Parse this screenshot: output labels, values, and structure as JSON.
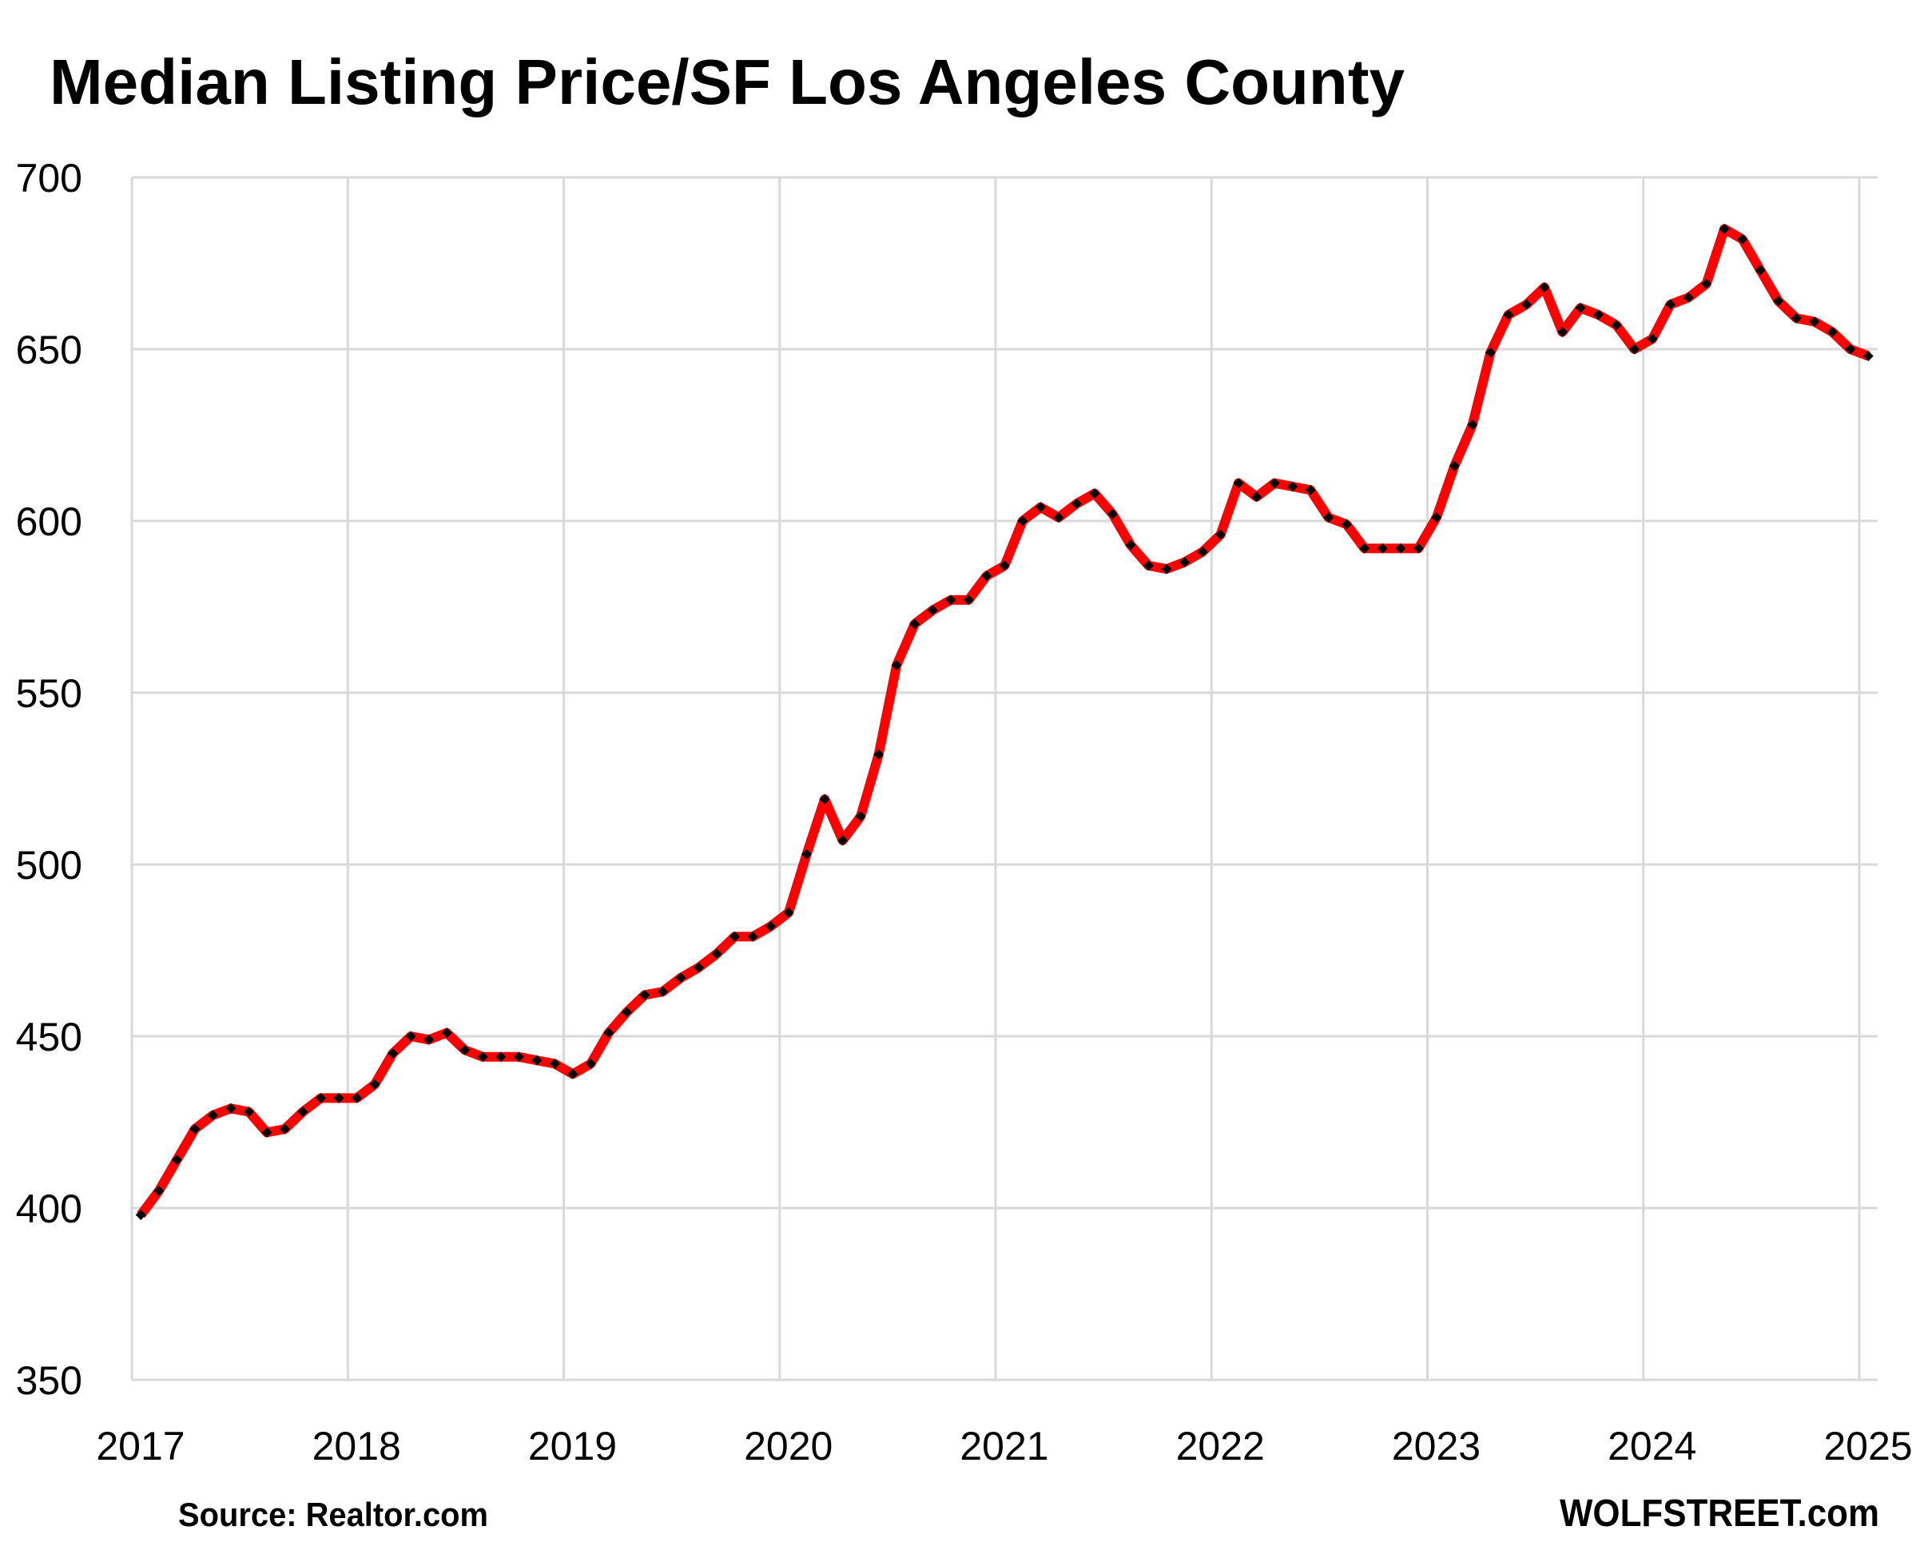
{
  "chart_data": {
    "type": "line",
    "title": "Median Listing Price/SF Los Angeles County",
    "xlabel": "",
    "ylabel": "",
    "ylim": [
      350,
      700
    ],
    "yticks": [
      "350",
      "400",
      "450",
      "500",
      "550",
      "600",
      "650",
      "700"
    ],
    "xticks": [
      "2017",
      "2018",
      "2019",
      "2020",
      "2021",
      "2022",
      "2023",
      "2024",
      "2025"
    ],
    "xrange": [
      "2017-01",
      "2025-01"
    ],
    "grid": true,
    "legend": "none",
    "series": [
      {
        "name": "Median Listing Price/SF Los Angeles County",
        "color": "#ff0000",
        "marker_color": "#000000",
        "start": "2017-01",
        "frequency": "monthly",
        "values": [
          398,
          405,
          414,
          423,
          427,
          429,
          428,
          422,
          423,
          428,
          432,
          432,
          432,
          436,
          445,
          450,
          449,
          451,
          446,
          444,
          444,
          444,
          443,
          442,
          439,
          442,
          451,
          457,
          462,
          463,
          467,
          470,
          474,
          479,
          479,
          482,
          486,
          503,
          519,
          507,
          514,
          532,
          558,
          570,
          574,
          577,
          577,
          584,
          587,
          600,
          604,
          601,
          605,
          608,
          602,
          593,
          587,
          586,
          588,
          591,
          596,
          611,
          607,
          611,
          610,
          609,
          601,
          599,
          592,
          592,
          592,
          592,
          601,
          616,
          628,
          649,
          660,
          663,
          668,
          655,
          662,
          660,
          657,
          650,
          653,
          663,
          665,
          669,
          685,
          682,
          673,
          664,
          659,
          658,
          655,
          650,
          648
        ]
      }
    ]
  },
  "footer": {
    "source": "Source: Realtor.com",
    "brand": "WOLFSTREET.com"
  },
  "colors": {
    "line": "#ff0000",
    "marker": "#000000",
    "grid": "#d9d9d9"
  }
}
